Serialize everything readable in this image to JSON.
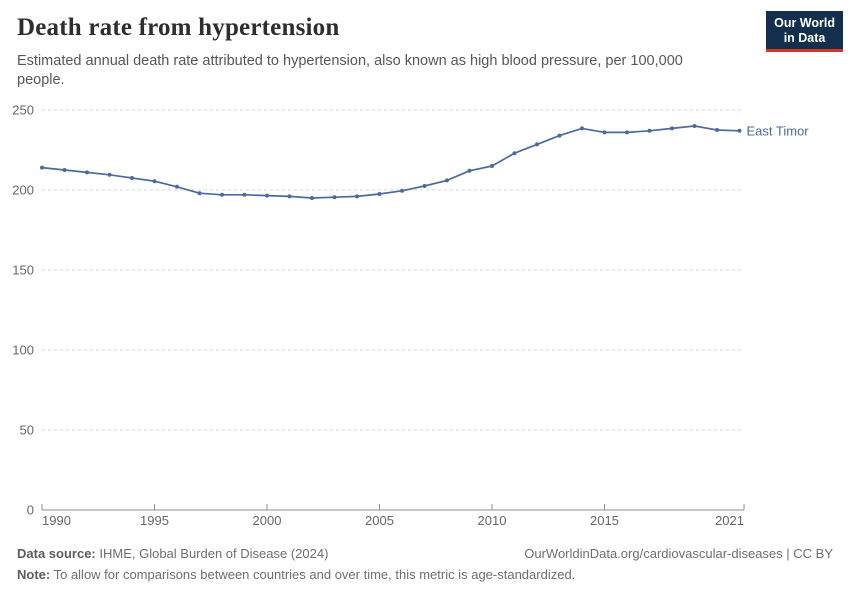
{
  "header": {
    "title": "Death rate from hypertension",
    "subtitle": "Estimated annual death rate attributed to hypertension, also known as high blood pressure, per 100,000 people.",
    "logo": {
      "line1": "Our World",
      "line2": "in Data",
      "bg_color": "#12304e",
      "stripe_color": "#d8352a"
    }
  },
  "chart_data": {
    "type": "line",
    "title": "Death rate from hypertension",
    "entity": "East Timor",
    "x": [
      1990,
      1991,
      1992,
      1993,
      1994,
      1995,
      1996,
      1997,
      1998,
      1999,
      2000,
      2001,
      2002,
      2003,
      2004,
      2005,
      2006,
      2007,
      2008,
      2009,
      2010,
      2011,
      2012,
      2013,
      2014,
      2015,
      2016,
      2017,
      2018,
      2019,
      2020,
      2021
    ],
    "values": [
      214,
      212.5,
      211,
      209.5,
      207.5,
      205.5,
      202,
      198,
      197,
      197,
      196.5,
      196,
      195,
      195.5,
      196,
      197.5,
      199.5,
      202.5,
      206,
      212,
      215,
      223,
      228.5,
      234,
      238.5,
      236,
      236,
      237,
      238.5,
      240,
      237.5,
      237
    ],
    "xticks": [
      1990,
      1995,
      2000,
      2005,
      2010,
      2015,
      2021
    ],
    "yticks": [
      0,
      50,
      100,
      150,
      200,
      250
    ],
    "xlim": [
      1990,
      2021
    ],
    "ylim": [
      0,
      250
    ],
    "grid": "horizontal-dashed",
    "legend_position": "end-of-line-label",
    "line_color": "#4C6A9C",
    "dot_color": "#4C6A9C",
    "label_color": "#4C6A9C",
    "grid_color": "#d6d6d6",
    "axis_color": "#8f8f8f",
    "tick_label_color": "#666666"
  },
  "footer": {
    "data_source_label": "Data source:",
    "data_source_value": " IHME, Global Burden of Disease (2024)",
    "note_label": "Note:",
    "note_value": " To allow for comparisons between countries and over time, this metric is age-standardized.",
    "attribution": "OurWorldinData.org/cardiovascular-diseases | CC BY"
  }
}
